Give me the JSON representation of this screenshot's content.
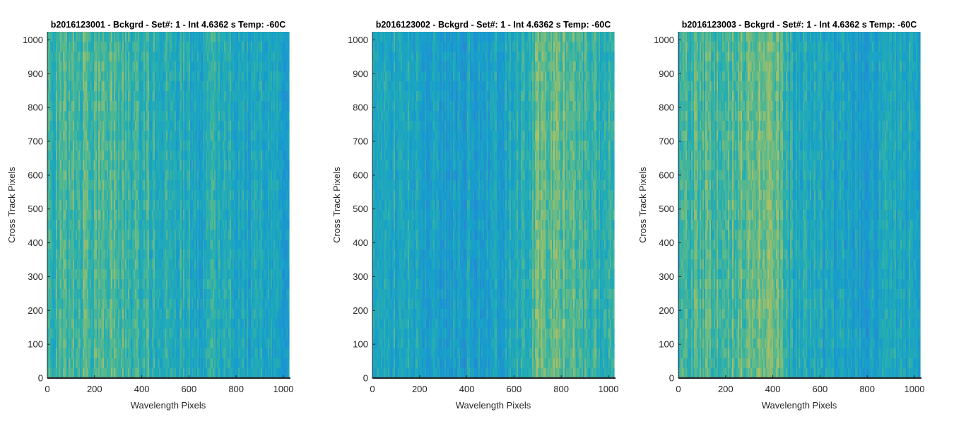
{
  "chart_data": [
    {
      "type": "heatmap",
      "title": "b2016123001 - Bckgrd - Set#: 1 - Int 4.6362 s Temp: -60C",
      "xlabel": "Wavelength Pixels",
      "ylabel": "Cross Track Pixels",
      "xlim": [
        0,
        1024
      ],
      "ylim": [
        0,
        1024
      ],
      "xticks": [
        0,
        200,
        400,
        600,
        800,
        1000
      ],
      "yticks": [
        0,
        100,
        200,
        300,
        400,
        500,
        600,
        700,
        800,
        900,
        1000
      ],
      "column_profile": [
        {
          "x": 0,
          "v": 0.45
        },
        {
          "x": 100,
          "v": 0.52
        },
        {
          "x": 250,
          "v": 0.56
        },
        {
          "x": 350,
          "v": 0.5
        },
        {
          "x": 450,
          "v": 0.44
        },
        {
          "x": 550,
          "v": 0.4
        },
        {
          "x": 650,
          "v": 0.36
        },
        {
          "x": 750,
          "v": 0.42
        },
        {
          "x": 850,
          "v": 0.34
        },
        {
          "x": 950,
          "v": 0.3
        },
        {
          "x": 1024,
          "v": 0.32
        }
      ]
    },
    {
      "type": "heatmap",
      "title": "b2016123002 - Bckgrd - Set#: 1 - Int 4.6362 s Temp: -60C",
      "xlabel": "Wavelength Pixels",
      "ylabel": "Cross Track Pixels",
      "xlim": [
        0,
        1024
      ],
      "ylim": [
        0,
        1024
      ],
      "xticks": [
        0,
        200,
        400,
        600,
        800,
        1000
      ],
      "yticks": [
        0,
        100,
        200,
        300,
        400,
        500,
        600,
        700,
        800,
        900,
        1000
      ],
      "column_profile": [
        {
          "x": 0,
          "v": 0.4
        },
        {
          "x": 100,
          "v": 0.38
        },
        {
          "x": 200,
          "v": 0.3
        },
        {
          "x": 350,
          "v": 0.26
        },
        {
          "x": 500,
          "v": 0.3
        },
        {
          "x": 600,
          "v": 0.36
        },
        {
          "x": 660,
          "v": 0.44
        },
        {
          "x": 700,
          "v": 0.6
        },
        {
          "x": 800,
          "v": 0.64
        },
        {
          "x": 900,
          "v": 0.52
        },
        {
          "x": 1024,
          "v": 0.42
        }
      ]
    },
    {
      "type": "heatmap",
      "title": "b2016123003 - Bckgrd - Set#: 1 - Int 4.6362 s Temp: -60C",
      "xlabel": "Wavelength Pixels",
      "ylabel": "Cross Track Pixels",
      "xlim": [
        0,
        1024
      ],
      "ylim": [
        0,
        1024
      ],
      "xticks": [
        0,
        200,
        400,
        600,
        800,
        1000
      ],
      "yticks": [
        0,
        100,
        200,
        300,
        400,
        500,
        600,
        700,
        800,
        900,
        1000
      ],
      "column_profile": [
        {
          "x": 0,
          "v": 0.5
        },
        {
          "x": 100,
          "v": 0.55
        },
        {
          "x": 200,
          "v": 0.58
        },
        {
          "x": 330,
          "v": 0.68
        },
        {
          "x": 420,
          "v": 0.64
        },
        {
          "x": 460,
          "v": 0.42
        },
        {
          "x": 550,
          "v": 0.36
        },
        {
          "x": 650,
          "v": 0.32
        },
        {
          "x": 750,
          "v": 0.26
        },
        {
          "x": 850,
          "v": 0.3
        },
        {
          "x": 1024,
          "v": 0.36
        }
      ]
    }
  ]
}
